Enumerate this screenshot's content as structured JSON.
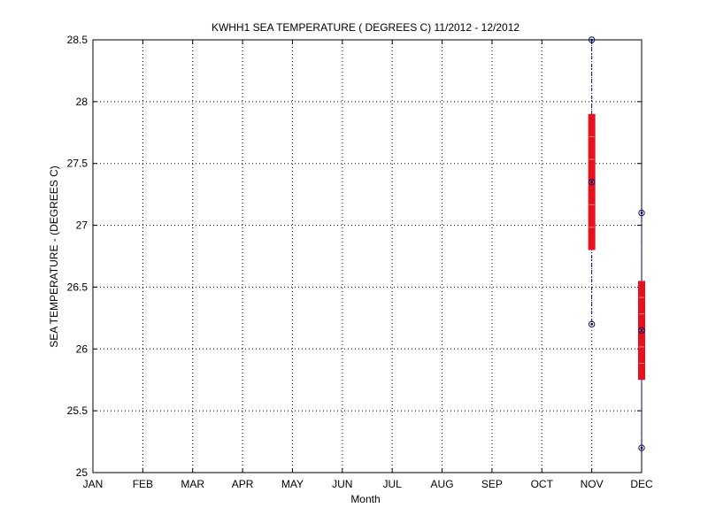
{
  "chart_data": {
    "type": "box",
    "title": "KWHH1  SEA TEMPERATURE ( DEGREES C) 11/2012 - 12/2012",
    "xlabel": "Month",
    "ylabel": "SEA TEMPERATURE  - (DEGREES C)",
    "categories": [
      "JAN",
      "FEB",
      "MAR",
      "APR",
      "MAY",
      "JUN",
      "JUL",
      "AUG",
      "SEP",
      "OCT",
      "NOV",
      "DEC"
    ],
    "ylim": [
      25,
      28.5
    ],
    "yticks": [
      "25",
      "25.5",
      "26",
      "26.5",
      "27",
      "27.5",
      "28",
      "28.5"
    ],
    "grid": true,
    "boxes": [
      {
        "category": "NOV",
        "min": 26.2,
        "q1": 26.8,
        "median": 27.35,
        "q3": 27.9,
        "max": 28.5
      },
      {
        "category": "DEC",
        "min": 25.2,
        "q1": 25.75,
        "median": 26.15,
        "q3": 26.55,
        "max": 27.1
      }
    ],
    "colors": {
      "box": "#e8101c",
      "whisker": "#0a0a7a",
      "grid": "#000000"
    }
  }
}
